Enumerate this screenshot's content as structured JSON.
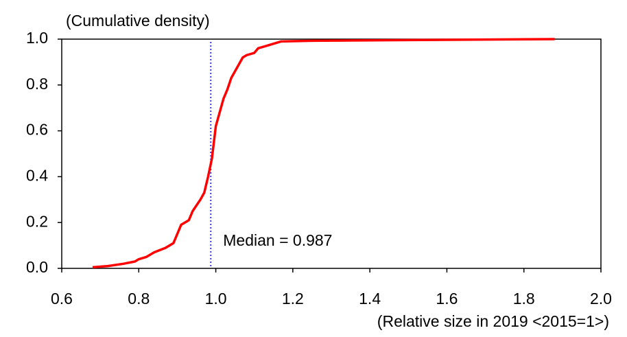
{
  "chart_data": {
    "type": "line",
    "y_label": "(Cumulative density)",
    "x_label": "(Relative size in 2019 <2015=1>)",
    "x": [
      0.68,
      0.72,
      0.76,
      0.79,
      0.8,
      0.82,
      0.84,
      0.87,
      0.89,
      0.9,
      0.91,
      0.93,
      0.94,
      0.96,
      0.97,
      0.98,
      0.99,
      0.995,
      1.0,
      1.01,
      1.02,
      1.03,
      1.04,
      1.05,
      1.06,
      1.07,
      1.08,
      1.1,
      1.11,
      1.13,
      1.15,
      1.17,
      1.25,
      1.5,
      1.88
    ],
    "series": [
      {
        "name": "Cumulative density",
        "color": "#ff0000",
        "values": [
          0.005,
          0.01,
          0.02,
          0.03,
          0.04,
          0.05,
          0.07,
          0.09,
          0.11,
          0.15,
          0.19,
          0.21,
          0.25,
          0.3,
          0.33,
          0.4,
          0.48,
          0.55,
          0.62,
          0.68,
          0.74,
          0.78,
          0.83,
          0.86,
          0.89,
          0.92,
          0.93,
          0.94,
          0.96,
          0.97,
          0.98,
          0.99,
          0.993,
          0.996,
          1.0
        ]
      }
    ],
    "median": 0.987,
    "median_color": "#3333ff",
    "median_label": "Median = 0.987",
    "xlim": [
      0.6,
      2.0
    ],
    "xticks": [
      0.6,
      0.8,
      {
        "value": 1,
        "label": "1.0"
      },
      1.2,
      1.4,
      1.6,
      1.8,
      {
        "value": 2,
        "label": "2.0"
      }
    ],
    "ylim": [
      0,
      1
    ],
    "yticks": [
      {
        "value": 0,
        "label": "0.0"
      },
      0.2,
      0.4,
      0.6,
      0.8,
      {
        "value": 1,
        "label": "1.0"
      }
    ]
  }
}
